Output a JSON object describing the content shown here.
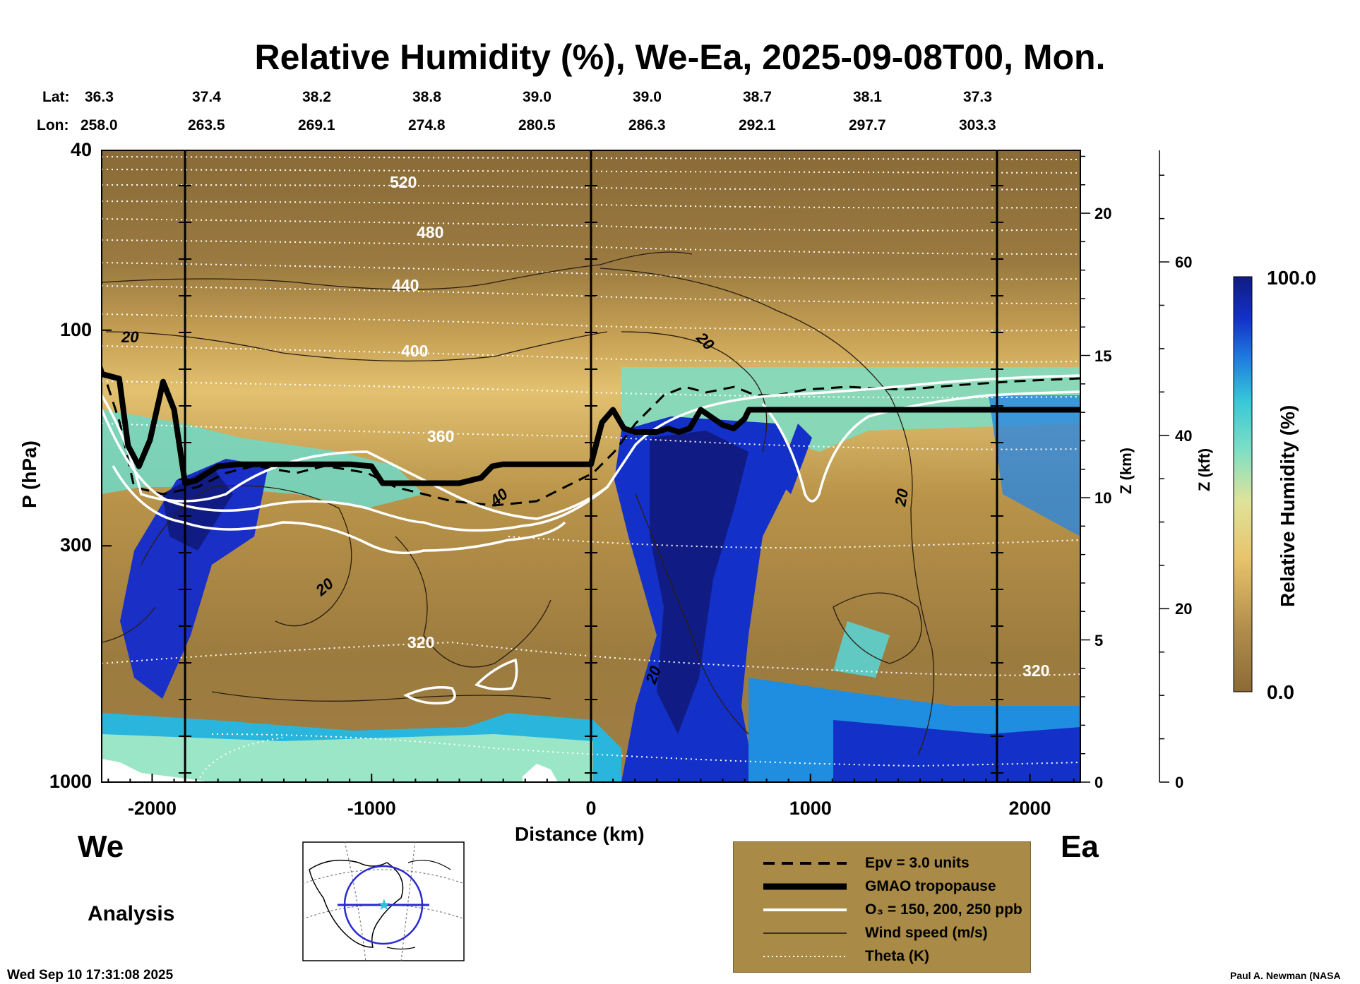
{
  "page": {
    "title": "Relative Humidity (%), We-Ea, 2025-09-08T00, Mon.",
    "west_label": "We",
    "east_label": "Ea",
    "analysis_label": "Analysis",
    "timestamp": "Wed Sep 10 17:31:08 2025",
    "credit": "Paul A. Newman (NASA"
  },
  "header_rows": {
    "lat_label": "Lat:",
    "lon_label": "Lon:",
    "lat": [
      "36.3",
      "37.4",
      "38.2",
      "38.8",
      "39.0",
      "39.0",
      "38.7",
      "38.1",
      "37.3"
    ],
    "lon": [
      "258.0",
      "263.5",
      "269.1",
      "274.8",
      "280.5",
      "286.3",
      "292.1",
      "297.7",
      "303.3"
    ]
  },
  "legend": {
    "items": [
      {
        "style": "dashed",
        "label": "Epv = 3.0 units"
      },
      {
        "style": "thick",
        "label": "GMAO tropopause"
      },
      {
        "style": "white",
        "label": "O₃ = 150, 200, 250 ppb"
      },
      {
        "style": "thin",
        "label": "Wind speed (m/s)"
      },
      {
        "style": "dotted",
        "label": "Theta (K)"
      }
    ],
    "bg_color": "#a98a46"
  },
  "colorbar": {
    "max_label": "100.0",
    "min_label": "0.0",
    "title": "Relative Humidity (%)",
    "dry_color": "#8b6a35",
    "wet_color": "#101c84"
  },
  "chart_data": {
    "type": "heatmap",
    "variable": "Relative Humidity (%)",
    "xlabel": "Distance (km)",
    "ylabel": "P (hPa)",
    "xlim": [
      -2230,
      2230
    ],
    "ylim": [
      1000,
      40
    ],
    "y_scale": "log",
    "xticks": [
      -2000,
      -1000,
      0,
      1000,
      2000
    ],
    "yticks": [
      1000,
      300,
      100,
      40
    ],
    "z_km_label": "Z (km)",
    "z_km_ticks": [
      "0",
      "5",
      "10",
      "15",
      "20"
    ],
    "z_kft_label": "Z (kft)",
    "z_kft_ticks": [
      "0",
      "20",
      "40",
      "60"
    ],
    "colorbar_range": [
      0,
      100
    ],
    "vertical_lines_km": [
      -1850,
      0,
      1850
    ],
    "tropopause": {
      "name": "GMAO tropopause",
      "x": [
        -2230,
        -2150,
        -2110,
        -2060,
        -2010,
        -1950,
        -1900,
        -1850,
        -1800,
        -1700,
        -1600,
        -1400,
        -1100,
        -1000,
        -950,
        -600,
        -500,
        -450,
        -400,
        0,
        50,
        100,
        150,
        200,
        300,
        350,
        400,
        450,
        500,
        600,
        650,
        700,
        720,
        1000,
        1500,
        1850,
        2230
      ],
      "p": [
        125,
        128,
        180,
        200,
        175,
        130,
        150,
        218,
        215,
        200,
        198,
        198,
        198,
        200,
        218,
        218,
        212,
        200,
        198,
        198,
        160,
        150,
        165,
        168,
        168,
        165,
        168,
        165,
        150,
        162,
        165,
        157,
        150,
        150,
        150,
        150,
        150
      ]
    },
    "contour_labels": {
      "theta_K": [
        "520",
        "480",
        "440",
        "400",
        "360",
        "320",
        "320"
      ],
      "wind_speed_ms": [
        "20",
        "20",
        "20",
        "20",
        "20",
        "40"
      ]
    }
  }
}
